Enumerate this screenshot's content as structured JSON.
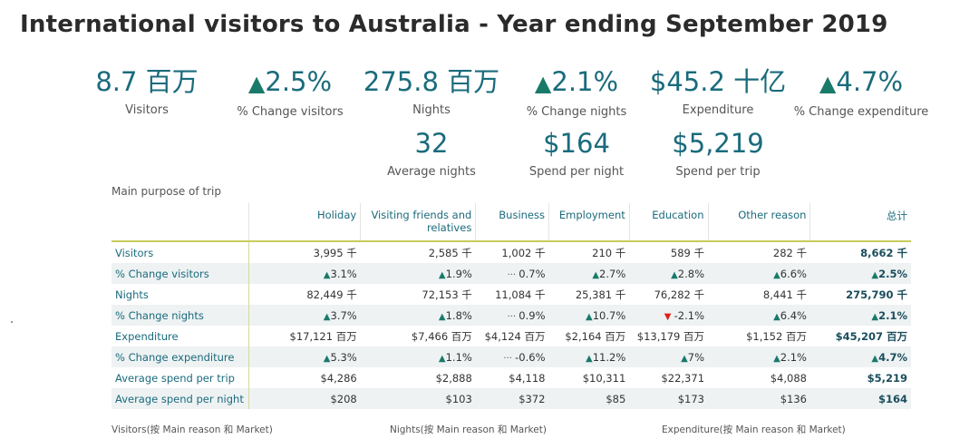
{
  "title": "International visitors to Australia - Year ending September 2019",
  "kpis_row1": [
    {
      "value": "8.7 百万",
      "label": "Visitors"
    },
    {
      "value": "▲2.5%",
      "label": "% Change visitors"
    },
    {
      "value": "275.8 百万",
      "label": "Nights"
    },
    {
      "value": "▲2.1%",
      "label": "% Change nights"
    },
    {
      "value": "$45.2 十亿",
      "label": "Expenditure"
    },
    {
      "value": "▲4.7%",
      "label": "% Change expenditure"
    }
  ],
  "kpis_row2": [
    {
      "value": "32",
      "label": "Average nights"
    },
    {
      "value": "$164",
      "label": "Spend per night"
    },
    {
      "value": "$5,219",
      "label": "Spend per trip"
    }
  ],
  "colors": {
    "accent": "#1a6b7c",
    "up": "#1a7a6a",
    "down": "#e0201a"
  },
  "chart_data": {
    "type": "table",
    "title": "Main purpose of trip",
    "columns": [
      "Holiday",
      "Visiting friends and relatives",
      "Business",
      "Employment",
      "Education",
      "Other reason",
      "总计"
    ],
    "rows": [
      {
        "label": "Visitors",
        "cells": [
          "3,995 千",
          "2,585 千",
          "1,002 千",
          "210 千",
          "589 千",
          "282 千",
          "8,662 千"
        ],
        "dir": []
      },
      {
        "label": "% Change visitors",
        "cells": [
          "3.1%",
          "1.9%",
          "0.7%",
          "2.7%",
          "2.8%",
          "6.6%",
          "2.5%"
        ],
        "dir": [
          "up",
          "up",
          "flat",
          "up",
          "up",
          "up",
          "up"
        ]
      },
      {
        "label": "Nights",
        "cells": [
          "82,449 千",
          "72,153 千",
          "11,084 千",
          "25,381 千",
          "76,282 千",
          "8,441 千",
          "275,790 千"
        ],
        "dir": []
      },
      {
        "label": "% Change nights",
        "cells": [
          "3.7%",
          "1.8%",
          "0.9%",
          "10.7%",
          "-2.1%",
          "6.4%",
          "2.1%"
        ],
        "dir": [
          "up",
          "up",
          "flat",
          "up",
          "down",
          "up",
          "up"
        ]
      },
      {
        "label": "Expenditure",
        "cells": [
          "$17,121 百万",
          "$7,466 百万",
          "$4,124 百万",
          "$2,164 百万",
          "$13,179 百万",
          "$1,152 百万",
          "$45,207 百万"
        ],
        "dir": []
      },
      {
        "label": "% Change expenditure",
        "cells": [
          "5.3%",
          "1.1%",
          "-0.6%",
          "11.2%",
          "7%",
          "2.1%",
          "4.7%"
        ],
        "dir": [
          "up",
          "up",
          "flat",
          "up",
          "up",
          "up",
          "up"
        ]
      },
      {
        "label": "Average spend per trip",
        "cells": [
          "$4,286",
          "$2,888",
          "$4,118",
          "$10,311",
          "$22,371",
          "$4,088",
          "$5,219"
        ],
        "dir": []
      },
      {
        "label": "Average spend per night",
        "cells": [
          "$208",
          "$103",
          "$372",
          "$85",
          "$173",
          "$136",
          "$164"
        ],
        "dir": []
      }
    ]
  },
  "footer": [
    "Visitors(按 Main reason 和 Market)",
    "Nights(按 Main reason 和 Market)",
    "Expenditure(按 Main reason 和 Market)"
  ]
}
